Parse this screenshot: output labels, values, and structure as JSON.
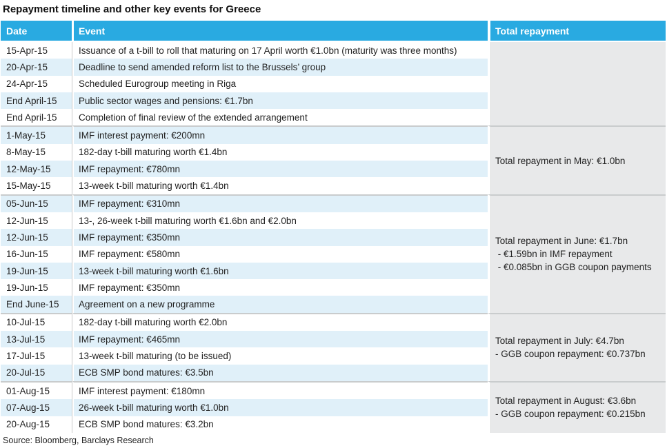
{
  "title": "Repayment timeline and other key events for Greece",
  "source": "Source: Bloomberg, Barclays Research",
  "columns": [
    "Date",
    "Event",
    "Total repayment"
  ],
  "colors": {
    "header_blue": "#29aae1",
    "stripe_blue": "#e0f0f9",
    "total_column_gray": "#e8e9ea",
    "group_separator": "#c9cccd",
    "header_text": "#ffffff"
  },
  "groups": [
    {
      "name": "April 2015",
      "total_lines": [],
      "rows": [
        {
          "date": "15-Apr-15",
          "event": "Issuance of a t-bill to roll that maturing on 17 April worth €1.0bn (maturity was three months)"
        },
        {
          "date": "20-Apr-15",
          "event": "Deadline to send amended reform list to the Brussels’ group"
        },
        {
          "date": "24-Apr-15",
          "event": "Scheduled Eurogroup meeting in Riga"
        },
        {
          "date": "End April-15",
          "event": "Public sector wages and pensions: €1.7bn"
        },
        {
          "date": "End April-15",
          "event": "Completion of final review of the extended arrangement"
        }
      ]
    },
    {
      "name": "May 2015",
      "total_lines": [
        "Total repayment in May: €1.0bn"
      ],
      "rows": [
        {
          "date": "1-May-15",
          "event": "IMF interest payment: €200mn"
        },
        {
          "date": "8-May-15",
          "event": "182-day t-bill maturing worth €1.4bn"
        },
        {
          "date": "12-May-15",
          "event": "IMF repayment: €780mn"
        },
        {
          "date": "15-May-15",
          "event": "13-week t-bill maturing worth €1.4bn"
        }
      ]
    },
    {
      "name": "June 2015",
      "total_lines": [
        "Total repayment in June: €1.7bn",
        " - €1.59bn in IMF repayment",
        " - €0.085bn in GGB coupon payments"
      ],
      "rows": [
        {
          "date": "05-Jun-15",
          "event": "IMF repayment: €310mn"
        },
        {
          "date": "12-Jun-15",
          "event": "13-, 26-week t-bill maturing worth €1.6bn and €2.0bn"
        },
        {
          "date": "12-Jun-15",
          "event": "IMF repayment: €350mn"
        },
        {
          "date": "16-Jun-15",
          "event": "IMF repayment: €580mn"
        },
        {
          "date": "19-Jun-15",
          "event": "13-week t-bill maturing worth €1.6bn"
        },
        {
          "date": "19-Jun-15",
          "event": "IMF repayment: €350mn"
        },
        {
          "date": "End June-15",
          "event": "Agreement on a new programme"
        }
      ]
    },
    {
      "name": "July 2015",
      "total_lines": [
        "Total repayment in July: €4.7bn",
        "- GGB coupon repayment: €0.737bn"
      ],
      "rows": [
        {
          "date": "10-Jul-15",
          "event": "182-day t-bill maturing worth €2.0bn"
        },
        {
          "date": "13-Jul-15",
          "event": "IMF repayment: €465mn"
        },
        {
          "date": "17-Jul-15",
          "event": "13-week t-bill maturing (to be issued)"
        },
        {
          "date": "20-Jul-15",
          "event": "ECB SMP bond matures: €3.5bn"
        }
      ]
    },
    {
      "name": "August 2015",
      "total_lines": [
        "Total repayment in August: €3.6bn",
        "- GGB coupon repayment: €0.215bn"
      ],
      "rows": [
        {
          "date": "01-Aug-15",
          "event": "IMF interest payment: €180mn"
        },
        {
          "date": "07-Aug-15",
          "event": "26-week t-bill maturing worth €1.0bn"
        },
        {
          "date": "20-Aug-15",
          "event": "ECB SMP bond matures: €3.2bn"
        }
      ]
    }
  ]
}
